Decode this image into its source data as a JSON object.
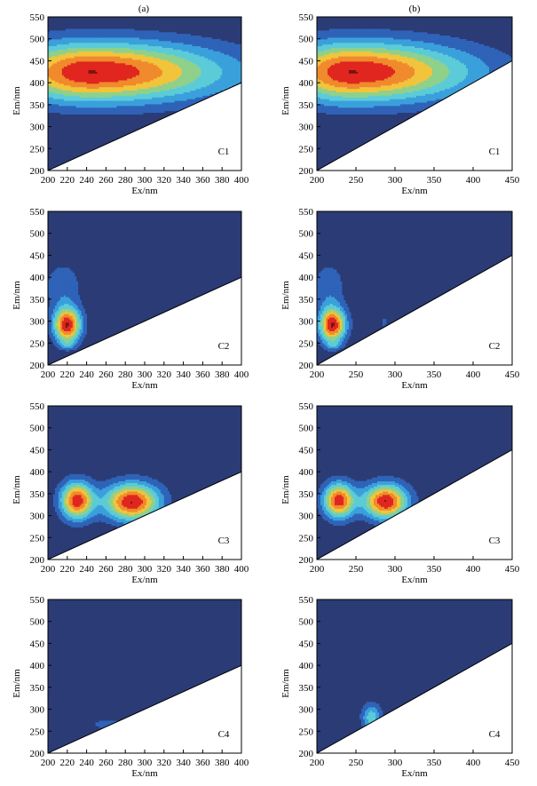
{
  "figure": {
    "column_labels": [
      "(a)",
      "(b)"
    ]
  },
  "colors": {
    "background_level": "#2b3b75",
    "levels": [
      "#2b3b75",
      "#2f63b8",
      "#3aa0dc",
      "#5ccbd8",
      "#8fd18b",
      "#f2c43c",
      "#f08a2c",
      "#e0261e",
      "#7a1410"
    ]
  },
  "chart_data": [
    {
      "type": "contour",
      "panel": "a-C1",
      "component_label": "C1",
      "xlabel": "Ex/nm",
      "ylabel": "Em/nm",
      "xlim": [
        200,
        400
      ],
      "ylim": [
        200,
        550
      ],
      "xticks": [
        200,
        220,
        240,
        260,
        280,
        300,
        320,
        340,
        360,
        380,
        400
      ],
      "yticks": [
        200,
        250,
        300,
        350,
        400,
        450,
        500,
        550
      ],
      "masked_below_line": [
        [
          200,
          200
        ],
        [
          400,
          400
        ]
      ],
      "peaks": [
        {
          "ex": 245,
          "em": 425,
          "sx": 60,
          "sy": 48,
          "amp": 1.0,
          "skew": 0.6
        }
      ],
      "levels": 8
    },
    {
      "type": "contour",
      "panel": "b-C1",
      "component_label": "C1",
      "xlabel": "Ex/nm",
      "ylabel": "Em/nm",
      "xlim": [
        200,
        450
      ],
      "ylim": [
        200,
        550
      ],
      "xticks": [
        200,
        250,
        300,
        350,
        400,
        450
      ],
      "yticks": [
        200,
        250,
        300,
        350,
        400,
        450,
        500,
        550
      ],
      "masked_below_line": [
        [
          200,
          200
        ],
        [
          450,
          450
        ]
      ],
      "peaks": [
        {
          "ex": 245,
          "em": 425,
          "sx": 62,
          "sy": 48,
          "amp": 1.0,
          "skew": 0.7
        }
      ],
      "levels": 8
    },
    {
      "type": "contour",
      "panel": "a-C2",
      "component_label": "C2",
      "xlabel": "Ex/nm",
      "ylabel": "Em/nm",
      "xlim": [
        200,
        400
      ],
      "ylim": [
        200,
        550
      ],
      "xticks": [
        200,
        220,
        240,
        260,
        280,
        300,
        320,
        340,
        360,
        380,
        400
      ],
      "yticks": [
        200,
        250,
        300,
        350,
        400,
        450,
        500,
        550
      ],
      "masked_below_line": [
        [
          200,
          200
        ],
        [
          400,
          400
        ]
      ],
      "peaks": [
        {
          "ex": 220,
          "em": 292,
          "sx": 10,
          "sy": 28,
          "amp": 1.0,
          "skew": 0
        },
        {
          "ex": 215,
          "em": 380,
          "sx": 14,
          "sy": 40,
          "amp": 0.22,
          "skew": 0
        },
        {
          "ex": 220,
          "em": 248,
          "sx": 6,
          "sy": 7,
          "amp": 0.18,
          "skew": 0
        }
      ],
      "levels": 8
    },
    {
      "type": "contour",
      "panel": "b-C2",
      "component_label": "C2",
      "xlabel": "Ex/nm",
      "ylabel": "Em/nm",
      "xlim": [
        200,
        450
      ],
      "ylim": [
        200,
        550
      ],
      "xticks": [
        200,
        250,
        300,
        350,
        400,
        450
      ],
      "yticks": [
        200,
        250,
        300,
        350,
        400,
        450,
        500,
        550
      ],
      "masked_below_line": [
        [
          200,
          200
        ],
        [
          450,
          450
        ]
      ],
      "peaks": [
        {
          "ex": 220,
          "em": 292,
          "sx": 12,
          "sy": 28,
          "amp": 1.0,
          "skew": 0
        },
        {
          "ex": 215,
          "em": 380,
          "sx": 15,
          "sy": 40,
          "amp": 0.22,
          "skew": 0
        },
        {
          "ex": 220,
          "em": 246,
          "sx": 7,
          "sy": 7,
          "amp": 0.18,
          "skew": 0
        },
        {
          "ex": 286,
          "em": 298,
          "sx": 3,
          "sy": 10,
          "amp": 0.16,
          "skew": 0
        }
      ],
      "levels": 8
    },
    {
      "type": "contour",
      "panel": "a-C3",
      "component_label": "C3",
      "xlabel": "Ex/nm",
      "ylabel": "Em/nm",
      "xlim": [
        200,
        400
      ],
      "ylim": [
        200,
        550
      ],
      "xticks": [
        200,
        220,
        240,
        260,
        280,
        300,
        320,
        340,
        360,
        380,
        400
      ],
      "yticks": [
        200,
        250,
        300,
        350,
        400,
        450,
        500,
        550
      ],
      "masked_below_line": [
        [
          200,
          200
        ],
        [
          400,
          400
        ]
      ],
      "peaks": [
        {
          "ex": 230,
          "em": 335,
          "sx": 12,
          "sy": 30,
          "amp": 0.95,
          "skew": 0
        },
        {
          "ex": 287,
          "em": 332,
          "sx": 20,
          "sy": 30,
          "amp": 1.0,
          "skew": 0
        }
      ],
      "levels": 8
    },
    {
      "type": "contour",
      "panel": "b-C3",
      "component_label": "C3",
      "xlabel": "Ex/nm",
      "ylabel": "Em/nm",
      "xlim": [
        200,
        450
      ],
      "ylim": [
        200,
        550
      ],
      "xticks": [
        200,
        250,
        300,
        350,
        400,
        450
      ],
      "yticks": [
        200,
        250,
        300,
        350,
        400,
        450,
        500,
        550
      ],
      "masked_below_line": [
        [
          200,
          200
        ],
        [
          450,
          450
        ]
      ],
      "peaks": [
        {
          "ex": 228,
          "em": 335,
          "sx": 14,
          "sy": 28,
          "amp": 0.95,
          "skew": 0
        },
        {
          "ex": 288,
          "em": 333,
          "sx": 20,
          "sy": 28,
          "amp": 1.0,
          "skew": 0
        }
      ],
      "levels": 8
    },
    {
      "type": "contour",
      "panel": "a-C4",
      "component_label": "C4",
      "xlabel": "Ex/nm",
      "ylabel": "Em/nm",
      "xlim": [
        200,
        400
      ],
      "ylim": [
        200,
        550
      ],
      "xticks": [
        200,
        220,
        240,
        260,
        280,
        300,
        320,
        340,
        360,
        380,
        400
      ],
      "yticks": [
        200,
        250,
        300,
        350,
        400,
        450,
        500,
        550
      ],
      "masked_below_line": [
        [
          200,
          200
        ],
        [
          400,
          400
        ]
      ],
      "peaks": [
        {
          "ex": 262,
          "em": 266,
          "sx": 14,
          "sy": 8,
          "amp": 0.2,
          "skew": 0
        }
      ],
      "levels": 8
    },
    {
      "type": "contour",
      "panel": "b-C4",
      "component_label": "C4",
      "xlabel": "Ex/nm",
      "ylabel": "Em/nm",
      "xlim": [
        200,
        450
      ],
      "ylim": [
        200,
        550
      ],
      "xticks": [
        200,
        250,
        300,
        350,
        400,
        450
      ],
      "yticks": [
        200,
        250,
        300,
        350,
        400,
        450,
        500,
        550
      ],
      "masked_below_line": [
        [
          200,
          200
        ],
        [
          450,
          450
        ]
      ],
      "peaks": [
        {
          "ex": 270,
          "em": 282,
          "sx": 9,
          "sy": 22,
          "amp": 0.45,
          "skew": 0
        }
      ],
      "levels": 8
    }
  ]
}
